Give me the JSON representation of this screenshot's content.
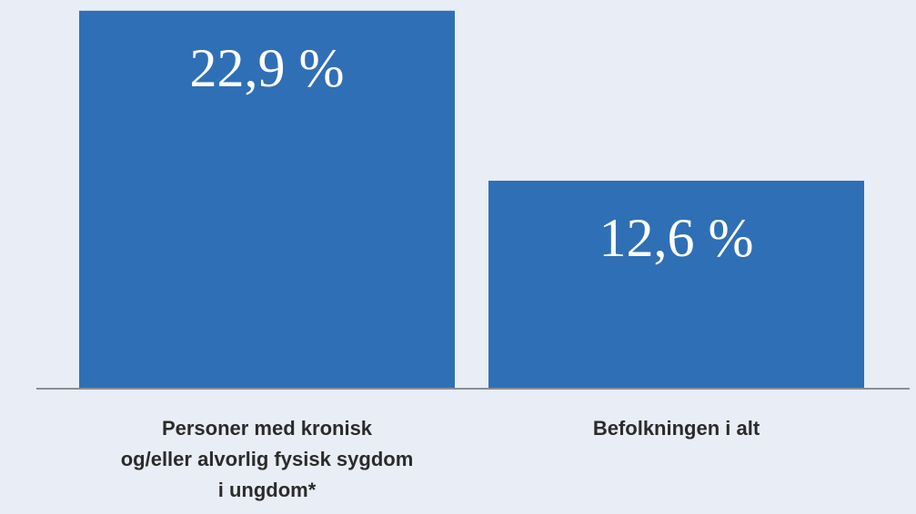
{
  "chart_data": {
    "type": "bar",
    "categories": [
      "Personer med kronisk\nog/eller alvorlig fysisk sygdom\ni ungdom*",
      "Befolkningen i alt"
    ],
    "values": [
      22.9,
      12.6
    ],
    "value_labels": [
      "22,9 %",
      "12,6 %"
    ],
    "color": "#2f6fb6",
    "ylim": [
      0,
      23.55
    ]
  }
}
